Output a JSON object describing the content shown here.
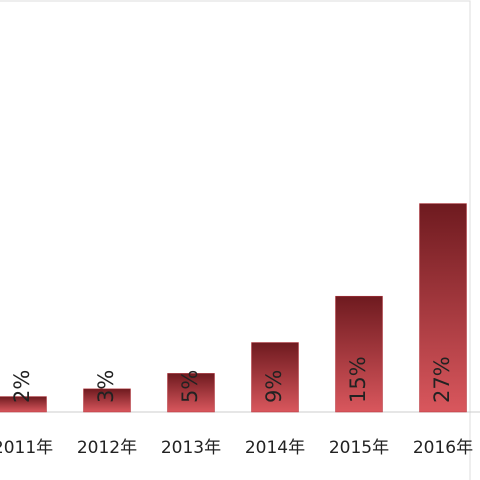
{
  "chart_data": {
    "type": "bar",
    "categories": [
      "2011年",
      "2012年",
      "2013年",
      "2014年",
      "2015年",
      "2016年"
    ],
    "values": [
      2,
      3,
      5,
      9,
      15,
      27
    ],
    "value_labels": [
      "2%",
      "3%",
      "5%",
      "9%",
      "15%",
      "27%"
    ],
    "color": "#b3323a"
  }
}
